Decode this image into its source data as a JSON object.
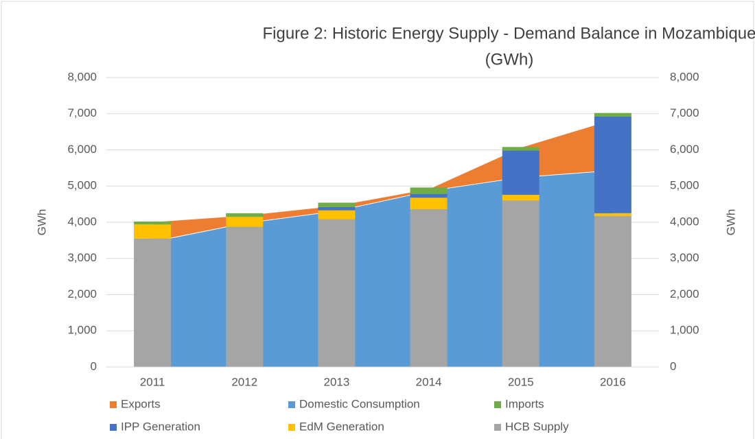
{
  "chart_data": {
    "type": "combo",
    "title": [
      "Figure 2: Historic Energy Supply - Demand Balance in Mozambique",
      "(GWh)"
    ],
    "y_label": "GWh",
    "y2_label": "GWh",
    "categories": [
      "2011",
      "2012",
      "2013",
      "2014",
      "2015",
      "2016"
    ],
    "ylim": [
      0,
      8000
    ],
    "yticks": [
      {
        "value": 0,
        "label": "0"
      },
      {
        "value": 1000,
        "label": "1,000"
      },
      {
        "value": 2000,
        "label": "2,000"
      },
      {
        "value": 3000,
        "label": "3,000"
      },
      {
        "value": 4000,
        "label": "4,000"
      },
      {
        "value": 5000,
        "label": "5,000"
      },
      {
        "value": 6000,
        "label": "6,000"
      },
      {
        "value": 7000,
        "label": "7,000"
      },
      {
        "value": 8000,
        "label": "8,000"
      }
    ],
    "y2lim": [
      0,
      8000
    ],
    "y2ticks": [
      {
        "value": 0,
        "label": "0"
      },
      {
        "value": 1000,
        "label": "1,000"
      },
      {
        "value": 2000,
        "label": "2,000"
      },
      {
        "value": 3000,
        "label": "3,000"
      },
      {
        "value": 4000,
        "label": "4,000"
      },
      {
        "value": 5000,
        "label": "5,000"
      },
      {
        "value": 6000,
        "label": "6,000"
      },
      {
        "value": 7000,
        "label": "7,000"
      },
      {
        "value": 8000,
        "label": "8,000"
      }
    ],
    "grid": true,
    "legend": "bottom",
    "series": [
      {
        "name": "Exports",
        "color": "#ed7d31",
        "kind": "area",
        "stack": "area",
        "values": [
          550,
          220,
          150,
          60,
          830,
          1410
        ]
      },
      {
        "name": "Domestic Consumption",
        "color": "#5b9bd5",
        "kind": "area",
        "stack": "area",
        "values": [
          3470,
          3980,
          4320,
          4870,
          5250,
          5440
        ]
      },
      {
        "name": "Imports",
        "color": "#70ad47",
        "kind": "bar",
        "stack": "bar",
        "axis": "y2",
        "values": [
          80,
          100,
          120,
          180,
          100,
          100
        ]
      },
      {
        "name": "IPP Generation",
        "color": "#4472c4",
        "kind": "bar",
        "stack": "bar",
        "axis": "y2",
        "values": [
          0,
          0,
          90,
          100,
          1220,
          2670
        ]
      },
      {
        "name": "EdM Generation",
        "color": "#ffc000",
        "kind": "bar",
        "stack": "bar",
        "axis": "y2",
        "values": [
          390,
          280,
          250,
          320,
          160,
          80
        ]
      },
      {
        "name": "HCB Supply",
        "color": "#a5a5a5",
        "kind": "bar",
        "stack": "bar",
        "axis": "y2",
        "values": [
          3550,
          3870,
          4080,
          4360,
          4600,
          4170
        ]
      }
    ],
    "stack_order": {
      "area": [
        1,
        0
      ],
      "bar": [
        5,
        4,
        3,
        2
      ]
    }
  }
}
